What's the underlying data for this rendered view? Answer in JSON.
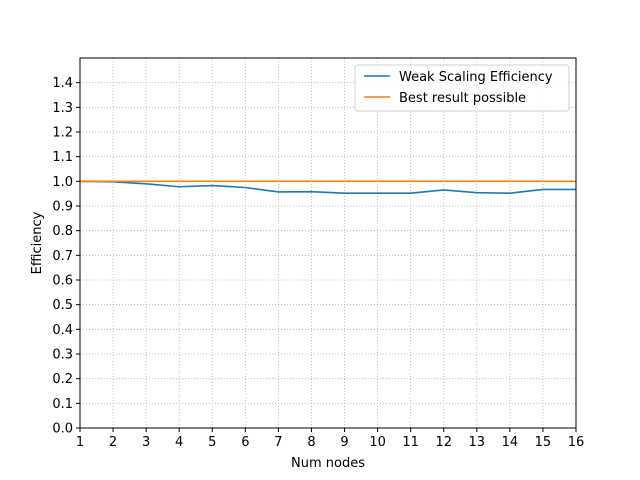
{
  "chart_data": {
    "type": "line",
    "title": "",
    "xlabel": "Num nodes",
    "ylabel": "Efficiency",
    "x": [
      1,
      2,
      3,
      4,
      5,
      6,
      7,
      8,
      9,
      10,
      11,
      12,
      13,
      14,
      15,
      16
    ],
    "xlim": [
      1,
      16
    ],
    "ylim": [
      0,
      1.5
    ],
    "xticks": [
      "1",
      "2",
      "3",
      "4",
      "5",
      "6",
      "7",
      "8",
      "9",
      "10",
      "11",
      "12",
      "13",
      "14",
      "15",
      "16"
    ],
    "yticks": [
      "0.0",
      "0.1",
      "0.2",
      "0.3",
      "0.4",
      "0.5",
      "0.6",
      "0.7",
      "0.8",
      "0.9",
      "1.0",
      "1.1",
      "1.2",
      "1.3",
      "1.4"
    ],
    "grid": true,
    "legend_position": "top-right",
    "series": [
      {
        "name": "Weak Scaling Efficiency",
        "color": "#1f77b4",
        "values": [
          1.0,
          0.998,
          0.99,
          0.978,
          0.983,
          0.975,
          0.957,
          0.958,
          0.952,
          0.952,
          0.952,
          0.965,
          0.954,
          0.952,
          0.967,
          0.967
        ]
      },
      {
        "name": "Best result possible",
        "color": "#ff7f0e",
        "values": [
          1,
          1,
          1,
          1,
          1,
          1,
          1,
          1,
          1,
          1,
          1,
          1,
          1,
          1,
          1,
          1
        ]
      }
    ]
  }
}
